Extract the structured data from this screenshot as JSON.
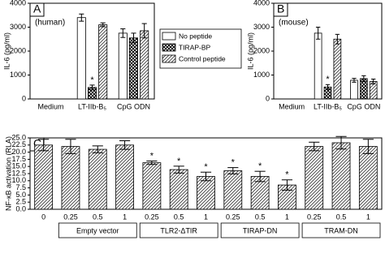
{
  "chart_data": [
    {
      "type": "bar",
      "panel_label": "A",
      "subtitle": "(human)",
      "y_label": "IL-6 (pg/ml)",
      "categories": [
        "Medium",
        "LT-IIb-B₅",
        "CpG ODN"
      ],
      "series": [
        {
          "name": "No peptide",
          "color": "#ffffff",
          "values": [
            0,
            3400,
            2750
          ],
          "errors": [
            0,
            150,
            180
          ]
        },
        {
          "name": "TIRAP-BP",
          "color": "#ffffff",
          "pattern": "crosshatch",
          "values": [
            0,
            480,
            2550
          ],
          "errors": [
            0,
            100,
            200
          ]
        },
        {
          "name": "Control peptide",
          "color": "#ffffff",
          "pattern": "diagonal",
          "values": [
            0,
            3100,
            2850
          ],
          "errors": [
            0,
            80,
            300
          ]
        }
      ],
      "annotations": [
        {
          "text": "*",
          "series": 1,
          "category": 1
        }
      ],
      "ylim": [
        0,
        4000
      ],
      "yticks": [
        0,
        1000,
        2000,
        3000,
        4000
      ],
      "legend": "right"
    },
    {
      "type": "bar",
      "panel_label": "B",
      "subtitle": "(mouse)",
      "y_label": "IL-6 (pg/ml)",
      "categories": [
        "Medium",
        "LT-IIb-B₅",
        "CpG ODN"
      ],
      "series": [
        {
          "color": "#ffffff",
          "values": [
            0,
            2750,
            780
          ],
          "errors": [
            0,
            250,
            80
          ]
        },
        {
          "color": "#ffffff",
          "pattern": "crosshatch",
          "values": [
            0,
            500,
            850
          ],
          "errors": [
            0,
            100,
            120
          ]
        },
        {
          "color": "#ffffff",
          "pattern": "diagonal",
          "values": [
            0,
            2500,
            730
          ],
          "errors": [
            0,
            200,
            100
          ]
        }
      ],
      "annotations": [
        {
          "text": "*",
          "series": 1,
          "category": 1
        }
      ],
      "ylim": [
        0,
        4000
      ],
      "yticks": [
        0,
        1000,
        2000,
        3000,
        4000
      ]
    },
    {
      "type": "bar",
      "panel_label": "C",
      "y_label": "NF-κB activation (RLA)",
      "categories": [
        "0",
        "0.25",
        "0.5",
        "1",
        "0.25",
        "0.5",
        "1",
        "0.25",
        "0.5",
        "1",
        "0.25",
        "0.5",
        "1"
      ],
      "color": "#ffffff",
      "pattern": "diagonal",
      "values": [
        22.5,
        22,
        21,
        22.5,
        16.3,
        13.9,
        11.5,
        13.5,
        11.5,
        8.5,
        22,
        23.3,
        22
      ],
      "errors": [
        2,
        2.5,
        1.2,
        1.5,
        0.6,
        1.2,
        1.5,
        1.1,
        1.8,
        1.8,
        1.5,
        2.2,
        2.5
      ],
      "groups": [
        {
          "label": "Empty vector",
          "from": 1,
          "to": 3
        },
        {
          "label": "TLR2-ΔTIR",
          "from": 4,
          "to": 6
        },
        {
          "label": "TIRAP-DN",
          "from": 7,
          "to": 9
        },
        {
          "label": "TRAM-DN",
          "from": 10,
          "to": 12
        }
      ],
      "annotations": [
        {
          "text": "*",
          "category": 4
        },
        {
          "text": "*",
          "category": 5
        },
        {
          "text": "*",
          "category": 6
        },
        {
          "text": "*",
          "category": 7
        },
        {
          "text": "*",
          "category": 8
        },
        {
          "text": "*",
          "category": 9
        }
      ],
      "ylim": [
        0,
        25
      ],
      "yticks": [
        {
          "value": 0,
          "label": "0.0"
        },
        {
          "value": 2.5,
          "label": "2.5"
        },
        {
          "value": 5,
          "label": "5.0"
        },
        {
          "value": 7.5,
          "label": "7.5"
        },
        {
          "value": 10,
          "label": "10.0"
        },
        {
          "value": 12.5,
          "label": "12.5"
        },
        {
          "value": 15,
          "label": "15.0"
        },
        {
          "value": 17.5,
          "label": "17.5"
        },
        {
          "value": 20,
          "label": "20.0"
        },
        {
          "value": 22.5,
          "label": "22.5"
        },
        {
          "value": 25,
          "label": "25.0"
        }
      ]
    }
  ]
}
